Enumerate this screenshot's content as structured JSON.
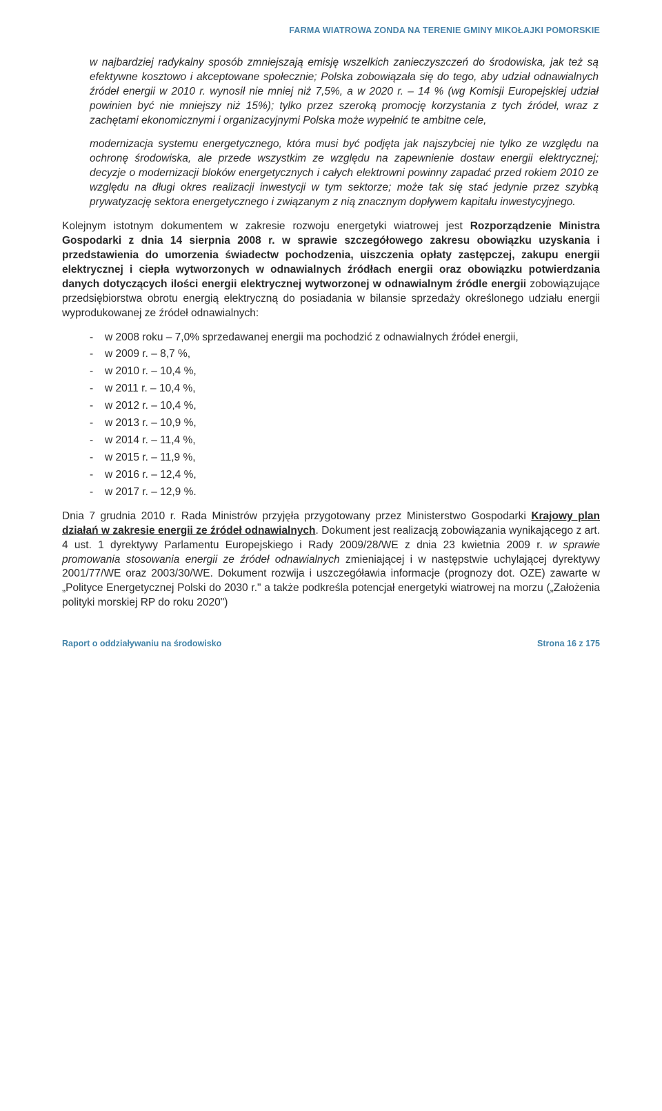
{
  "header": {
    "title": "FARMA WIATROWA ZONDA NA TERENIE GMINY MIKOŁAJKI POMORSKIE"
  },
  "blocks": {
    "p1": "w najbardziej radykalny sposób zmniejszają emisję wszelkich zanieczyszczeń do środowiska, jak też są efektywne kosztowo i akceptowane społecznie; Polska zobowiązała się do tego, aby udział odnawialnych źródeł energii w 2010 r. wynosił nie mniej niż 7,5%, a w 2020 r. – 14 % (wg Komisji Europejskiej udział powinien być nie mniejszy niż 15%); tylko przez szeroką promocję korzystania z tych źródeł, wraz z zachętami ekonomicznymi i organizacyjnymi Polska może wypełnić te ambitne cele,",
    "p2": "modernizacja systemu energetycznego, która musi być podjęta jak najszybciej nie tylko ze względu na ochronę środowiska, ale przede wszystkim ze względu na zapewnienie dostaw energii elektrycznej; decyzje o modernizacji bloków energetycznych i całych elektrowni powinny zapadać przed rokiem 2010 ze względu na długi okres realizacji inwestycji w tym sektorze; może tak się stać jedynie przez szybką prywatyzację sektora energetycznego i związanym z nią znacznym dopływem kapitału inwestycyjnego.",
    "p3a": "Kolejnym istotnym dokumentem w zakresie rozwoju energetyki wiatrowej jest ",
    "p3b": "Rozporządzenie Ministra Gospodarki z dnia 14 sierpnia 2008 r. w sprawie szczegółowego zakresu obowiązku uzyskania i przedstawienia do umorzenia świadectw pochodzenia, uiszczenia opłaty zastępczej, zakupu energii elektrycznej i ciepła wytworzonych w odnawialnych źródłach energii oraz obowiązku potwierdzania danych dotyczących ilości energii elektrycznej wytworzonej w odnawialnym źródle energii",
    "p3c": " zobowiązujące przedsiębiorstwa obrotu energią elektryczną do posiadania w bilansie sprzedaży określonego udziału energii wyprodukowanej ze źródeł odnawialnych:"
  },
  "bullets": [
    "w 2008 roku – 7,0% sprzedawanej energii ma pochodzić z odnawialnych źródeł energii,",
    "w 2009 r. – 8,7 %,",
    "w 2010 r. – 10,4 %,",
    "w 2011 r. – 10,4 %,",
    "w 2012 r. – 10,4 %,",
    "w 2013 r. – 10,9 %,",
    "w 2014 r. – 11,4 %,",
    "w 2015 r. – 11,9 %,",
    "w 2016 r. – 12,4 %,",
    "w 2017 r. – 12,9 %."
  ],
  "last": {
    "a": "Dnia 7 grudnia 2010 r. Rada Ministrów przyjęła przygotowany przez Ministerstwo Gospodarki ",
    "b": "Krajowy plan działań w zakresie energii ze źródeł odnawialnych",
    "c": ". Dokument jest realizacją zobowiązania wynikającego z art. 4 ust. 1 dyrektywy Parlamentu Europejskiego i Rady 2009/28/WE z dnia 23 kwietnia 2009 r. ",
    "d": "w sprawie promowania stosowania energii ze źródeł odnawialnych",
    "e": " zmieniającej i w następstwie uchylającej dyrektywy 2001/77/WE oraz 2003/30/WE. Dokument rozwija i uszczegóławia informacje (prognozy dot. OZE) zawarte w „Polityce Energetycznej Polski do 2030 r.\" a także podkreśla potencjał energetyki wiatrowej na morzu („Założenia polityki morskiej RP do roku 2020\")"
  },
  "footer": {
    "left": "Raport o oddziaływaniu na środowisko",
    "right": "Strona 16 z 175"
  },
  "colors": {
    "accent": "#4183a8",
    "text": "#2a2a2a",
    "background": "#ffffff"
  }
}
